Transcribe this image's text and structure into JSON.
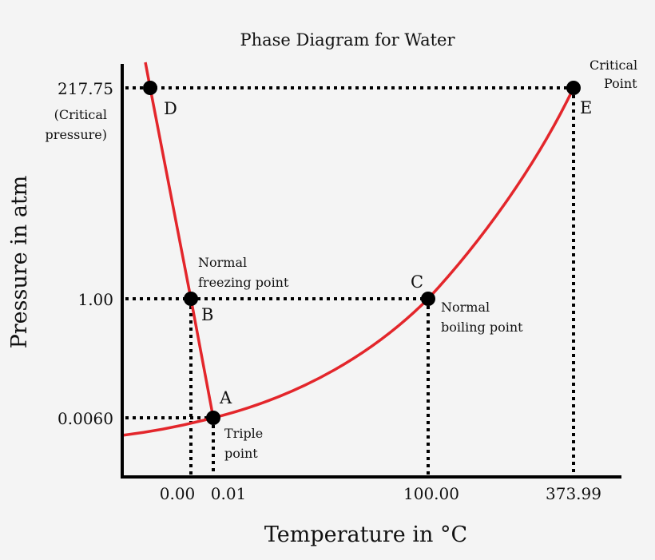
{
  "chart_data": {
    "type": "phase-diagram",
    "title": "Phase Diagram for Water",
    "xlabel": "Temperature in °C",
    "ylabel": "Pressure in atm",
    "x_ticks": [
      "0.00",
      "0.01",
      "100.00",
      "373.99"
    ],
    "y_ticks": [
      "217.75",
      "1.00",
      "0.0060"
    ],
    "y_tick_note": [
      "(Critical",
      "pressure)"
    ],
    "curve_color": "#e3262b",
    "points": [
      {
        "id": "A",
        "temperature": 0.01,
        "pressure": 0.006,
        "label": [
          "Triple",
          "point"
        ]
      },
      {
        "id": "B",
        "temperature": 0.0,
        "pressure": 1.0,
        "label": [
          "Normal",
          "freezing point"
        ]
      },
      {
        "id": "C",
        "temperature": 100.0,
        "pressure": 1.0,
        "label": [
          "Normal",
          "boiling point"
        ]
      },
      {
        "id": "D",
        "temperature": null,
        "pressure": 217.75,
        "label": []
      },
      {
        "id": "E",
        "temperature": 373.99,
        "pressure": 217.75,
        "label": [
          "Critical",
          "Point"
        ]
      }
    ]
  }
}
